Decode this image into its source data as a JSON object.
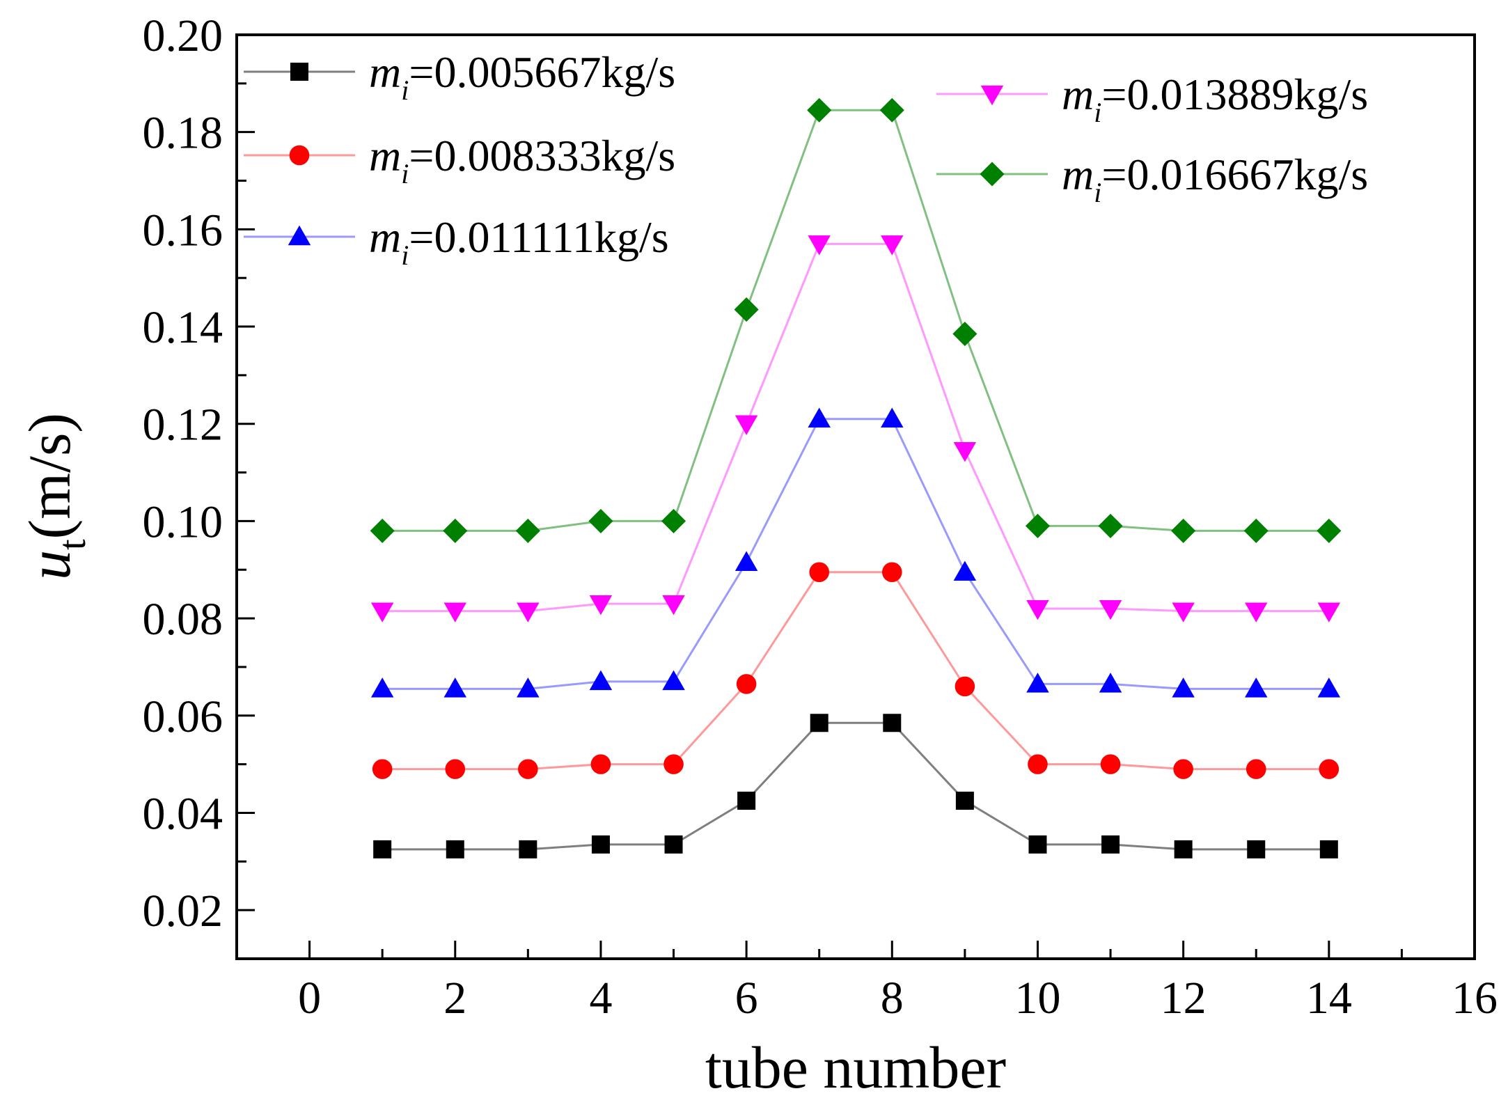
{
  "chart_data": {
    "type": "line",
    "title": "",
    "xlabel": "tube number",
    "ylabel": {
      "symbol": "u",
      "subscript": "t",
      "unit": "(m/s)"
    },
    "xlim": [
      -1,
      16
    ],
    "ylim": [
      0.01,
      0.2
    ],
    "xticks": [
      "0",
      "2",
      "4",
      "6",
      "8",
      "10",
      "12",
      "14",
      "16"
    ],
    "yticks": [
      "0.02",
      "0.04",
      "0.06",
      "0.08",
      "0.10",
      "0.12",
      "0.14",
      "0.16",
      "0.18",
      "0.20"
    ],
    "grid": false,
    "legend_placement": "top-left and top-right",
    "x": [
      1,
      2,
      3,
      4,
      5,
      6,
      7,
      8,
      9,
      10,
      11,
      12,
      13,
      14
    ],
    "series": [
      {
        "name": "m_i=0.005667kg/s",
        "legend": {
          "symbol": "m",
          "subscript": "i",
          "value": "=0.005667kg/s"
        },
        "color": "#000000",
        "line_color": "#7f7f7f",
        "marker": "square",
        "values": [
          0.0325,
          0.0325,
          0.0325,
          0.0335,
          0.0335,
          0.0425,
          0.0585,
          0.0585,
          0.0425,
          0.0335,
          0.0335,
          0.0325,
          0.0325,
          0.0325
        ]
      },
      {
        "name": "m_i=0.008333kg/s",
        "legend": {
          "symbol": "m",
          "subscript": "i",
          "value": "=0.008333kg/s"
        },
        "color": "#ff0000",
        "line_color": "#ff9999",
        "marker": "circle",
        "values": [
          0.049,
          0.049,
          0.049,
          0.05,
          0.05,
          0.0665,
          0.0895,
          0.0895,
          0.066,
          0.05,
          0.05,
          0.049,
          0.049,
          0.049
        ]
      },
      {
        "name": "m_i=0.011111kg/s",
        "legend": {
          "symbol": "m",
          "subscript": "i",
          "value": "=0.011111kg/s"
        },
        "color": "#0000ff",
        "line_color": "#9999ff",
        "marker": "triangle-up",
        "values": [
          0.0655,
          0.0655,
          0.0655,
          0.067,
          0.067,
          0.0915,
          0.121,
          0.121,
          0.0895,
          0.0665,
          0.0665,
          0.0655,
          0.0655,
          0.0655
        ]
      },
      {
        "name": "m_i=0.013889kg/s",
        "legend": {
          "symbol": "m",
          "subscript": "i",
          "value": "=0.013889kg/s"
        },
        "color": "#ff00ff",
        "line_color": "#ff99ff",
        "marker": "triangle-down",
        "values": [
          0.0815,
          0.0815,
          0.0815,
          0.083,
          0.083,
          0.12,
          0.157,
          0.157,
          0.1145,
          0.082,
          0.082,
          0.0815,
          0.0815,
          0.0815
        ]
      },
      {
        "name": "m_i=0.016667kg/s",
        "legend": {
          "symbol": "m",
          "subscript": "i",
          "value": "=0.016667kg/s"
        },
        "color": "#008000",
        "line_color": "#80c080",
        "marker": "diamond",
        "values": [
          0.098,
          0.098,
          0.098,
          0.1,
          0.1,
          0.1435,
          0.1845,
          0.1845,
          0.1385,
          0.099,
          0.099,
          0.098,
          0.098,
          0.098
        ]
      }
    ]
  }
}
